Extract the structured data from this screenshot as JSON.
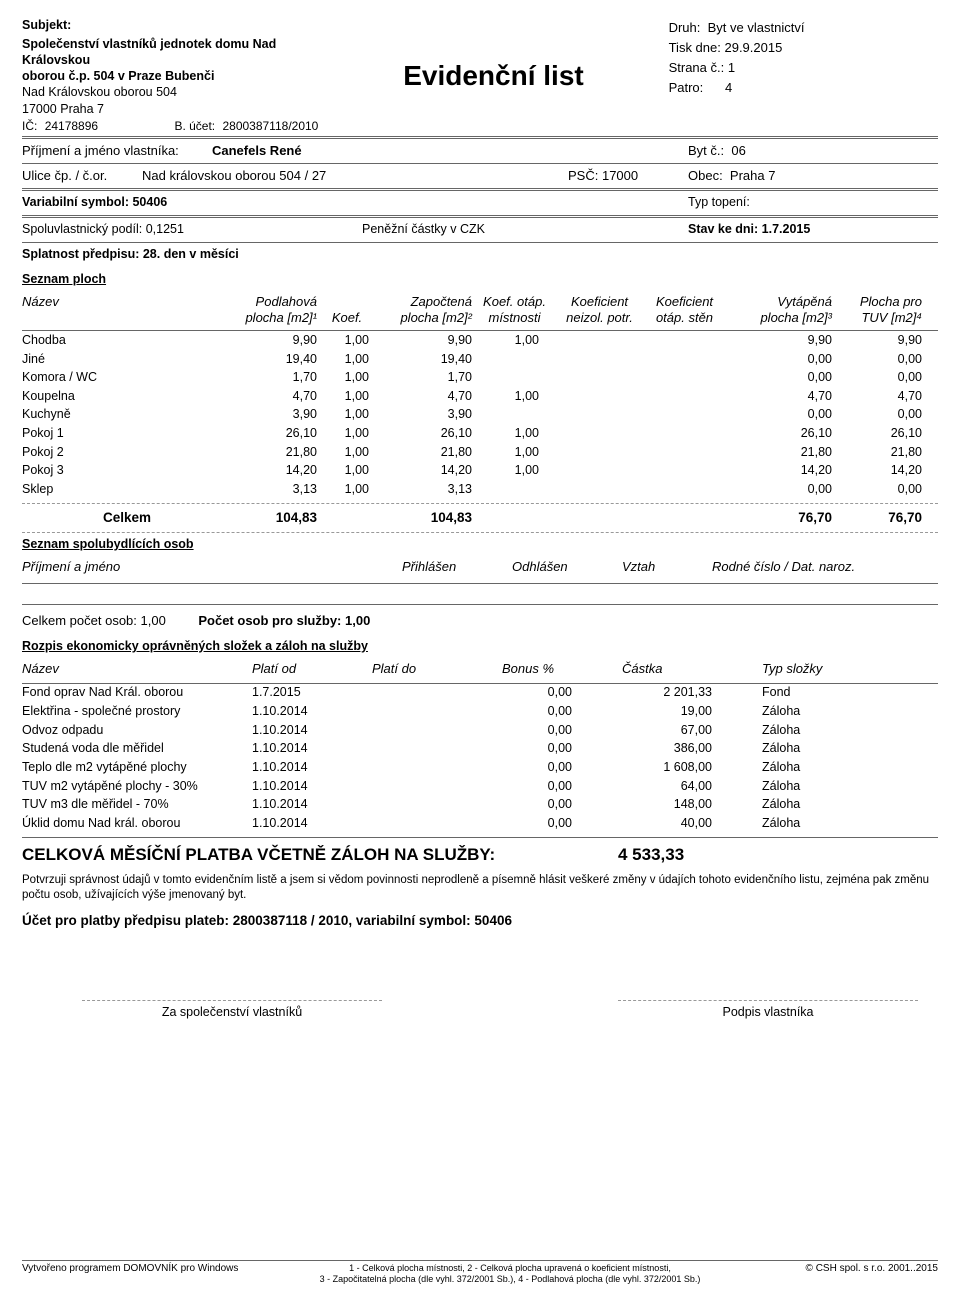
{
  "header": {
    "subjekt_label": "Subjekt:",
    "org_name1": "Společenství vlastníků jednotek domu Nad Královskou",
    "org_name2": "oborou č.p. 504 v Praze Bubenči",
    "street": "Nad Královskou oborou 504",
    "city": "17000  Praha 7",
    "ic_label": "IČ:",
    "ic": "24178896",
    "acct_label": "B. účet:",
    "acct": "2800387118/2010",
    "title": "Evidenční list",
    "druh_label": "Druh:",
    "druh": "Byt ve vlastnictví",
    "tisk_label": "Tisk dne:",
    "tisk": "29.9.2015",
    "strana_label": "Strana č.:",
    "strana": "1",
    "patro_label": "Patro:",
    "patro": "4"
  },
  "owner": {
    "name_label": "Příjmení a jméno vlastníka:",
    "name": "Canefels René",
    "byt_label": "Byt č.:",
    "byt": "06",
    "ulice_label": "Ulice čp. / č.or.",
    "ulice": "Nad královskou oborou  504 / 27",
    "psc_label": "PSČ:",
    "psc": "17000",
    "obec_label": "Obec:",
    "obec": "Praha 7",
    "vs_label": "Variabilní symbol:",
    "vs": "50406",
    "topeni_label": "Typ topení:",
    "topeni": "",
    "podil_label": "Spoluvlastnický podíl:",
    "podil": "0,1251",
    "castky_label": "Peněžní částky v",
    "castky": "CZK",
    "stav_label": "Stav ke dni:",
    "stav": "1.7.2015",
    "splatnost_label": "Splatnost předpisu:",
    "splatnost": "28. den v měsíci"
  },
  "plochy": {
    "heading": "Seznam ploch",
    "cols": {
      "c1": "Název",
      "c2a": "Podlahová",
      "c2b": "plocha [m2]¹",
      "c3": "Koef.",
      "c4a": "Započtená",
      "c4b": "plocha [m2]²",
      "c5a": "Koef. otáp.",
      "c5b": "místnosti",
      "c6a": "Koeficient",
      "c6b": "neizol. potr.",
      "c7a": "Koeficient",
      "c7b": "otáp. stěn",
      "c8a": "Vytápěná",
      "c8b": "plocha [m2]³",
      "c9a": "Plocha pro",
      "c9b": "TUV [m2]⁴"
    },
    "rows": [
      {
        "n": "Chodba",
        "c2": "9,90",
        "c3": "1,00",
        "c4": "9,90",
        "c5": "1,00",
        "c6": "",
        "c7": "",
        "c8": "9,90",
        "c9": "9,90"
      },
      {
        "n": "Jiné",
        "c2": "19,40",
        "c3": "1,00",
        "c4": "19,40",
        "c5": "",
        "c6": "",
        "c7": "",
        "c8": "0,00",
        "c9": "0,00"
      },
      {
        "n": "Komora / WC",
        "c2": "1,70",
        "c3": "1,00",
        "c4": "1,70",
        "c5": "",
        "c6": "",
        "c7": "",
        "c8": "0,00",
        "c9": "0,00"
      },
      {
        "n": "Koupelna",
        "c2": "4,70",
        "c3": "1,00",
        "c4": "4,70",
        "c5": "1,00",
        "c6": "",
        "c7": "",
        "c8": "4,70",
        "c9": "4,70"
      },
      {
        "n": "Kuchyně",
        "c2": "3,90",
        "c3": "1,00",
        "c4": "3,90",
        "c5": "",
        "c6": "",
        "c7": "",
        "c8": "0,00",
        "c9": "0,00"
      },
      {
        "n": "Pokoj 1",
        "c2": "26,10",
        "c3": "1,00",
        "c4": "26,10",
        "c5": "1,00",
        "c6": "",
        "c7": "",
        "c8": "26,10",
        "c9": "26,10"
      },
      {
        "n": "Pokoj 2",
        "c2": "21,80",
        "c3": "1,00",
        "c4": "21,80",
        "c5": "1,00",
        "c6": "",
        "c7": "",
        "c8": "21,80",
        "c9": "21,80"
      },
      {
        "n": "Pokoj 3",
        "c2": "14,20",
        "c3": "1,00",
        "c4": "14,20",
        "c5": "1,00",
        "c6": "",
        "c7": "",
        "c8": "14,20",
        "c9": "14,20"
      },
      {
        "n": "Sklep",
        "c2": "3,13",
        "c3": "1,00",
        "c4": "3,13",
        "c5": "",
        "c6": "",
        "c7": "",
        "c8": "0,00",
        "c9": "0,00"
      }
    ],
    "total_label": "Celkem",
    "totals": {
      "c2": "104,83",
      "c4": "104,83",
      "c8": "76,70",
      "c9": "76,70"
    }
  },
  "persons": {
    "heading": "Seznam spolubydlících osob",
    "cols": {
      "c1": "Příjmení a jméno",
      "c2": "Přihlášen",
      "c3": "Odhlášen",
      "c4": "Vztah",
      "c5": "Rodné číslo / Dat. naroz."
    },
    "total_count_label": "Celkem počet osob:",
    "total_count": "1,00",
    "service_count_label": "Počet osob pro služby:",
    "service_count": "1,00"
  },
  "fees": {
    "heading": "Rozpis ekonomicky oprávněných složek a záloh na služby",
    "cols": {
      "c1": "Název",
      "c2": "Platí od",
      "c3": "Platí do",
      "c4": "Bonus %",
      "c5": "Částka",
      "c6": "Typ složky"
    },
    "rows": [
      {
        "n": "Fond oprav Nad Král. oborou",
        "od": "1.7.2015",
        "do": "",
        "b": "0,00",
        "c": "2 201,33",
        "t": "Fond"
      },
      {
        "n": "Elektřina - společné prostory",
        "od": "1.10.2014",
        "do": "",
        "b": "0,00",
        "c": "19,00",
        "t": "Záloha"
      },
      {
        "n": "Odvoz odpadu",
        "od": "1.10.2014",
        "do": "",
        "b": "0,00",
        "c": "67,00",
        "t": "Záloha"
      },
      {
        "n": "Studená voda dle měřidel",
        "od": "1.10.2014",
        "do": "",
        "b": "0,00",
        "c": "386,00",
        "t": "Záloha"
      },
      {
        "n": "Teplo dle m2 vytápěné plochy",
        "od": "1.10.2014",
        "do": "",
        "b": "0,00",
        "c": "1 608,00",
        "t": "Záloha"
      },
      {
        "n": "TUV m2  vytápěné plochy - 30%",
        "od": "1.10.2014",
        "do": "",
        "b": "0,00",
        "c": "64,00",
        "t": "Záloha"
      },
      {
        "n": "TUV m3 dle měřidel - 70%",
        "od": "1.10.2014",
        "do": "",
        "b": "0,00",
        "c": "148,00",
        "t": "Záloha"
      },
      {
        "n": "Úklid domu Nad král. oborou",
        "od": "1.10.2014",
        "do": "",
        "b": "0,00",
        "c": "40,00",
        "t": "Záloha"
      }
    ],
    "total_label": "CELKOVÁ MĚSÍČNÍ PLATBA VČETNĚ ZÁLOH NA SLUŽBY:",
    "total_value": "4 533,33"
  },
  "confirm_text": "Potvrzuji správnost údajů v tomto evidenčním listě a jsem si vědom povinnosti neprodleně a písemně hlásit veškeré změny v údajích tohoto evidenčního listu, zejména pak změnu počtu osob, užívajících výše jmenovaný byt.",
  "account_line": "Účet pro platby předpisu plateb: 2800387118 / 2010, variabilní symbol: 50406",
  "sign": {
    "left": "Za společenství vlastníků",
    "right": "Podpis vlastníka"
  },
  "footer": {
    "left": "Vytvořeno programem DOMOVNÍK pro Windows",
    "mid1": "1 - Celková plocha místnosti, 2 - Celková plocha upravená o koeficient místnosti,",
    "mid2": "3 - Započitatelná plocha (dle vyhl. 372/2001 Sb.), 4 - Podlahová plocha (dle vyhl. 372/2001 Sb.)",
    "right": "© CSH spol. s r.o. 2001..2015"
  }
}
